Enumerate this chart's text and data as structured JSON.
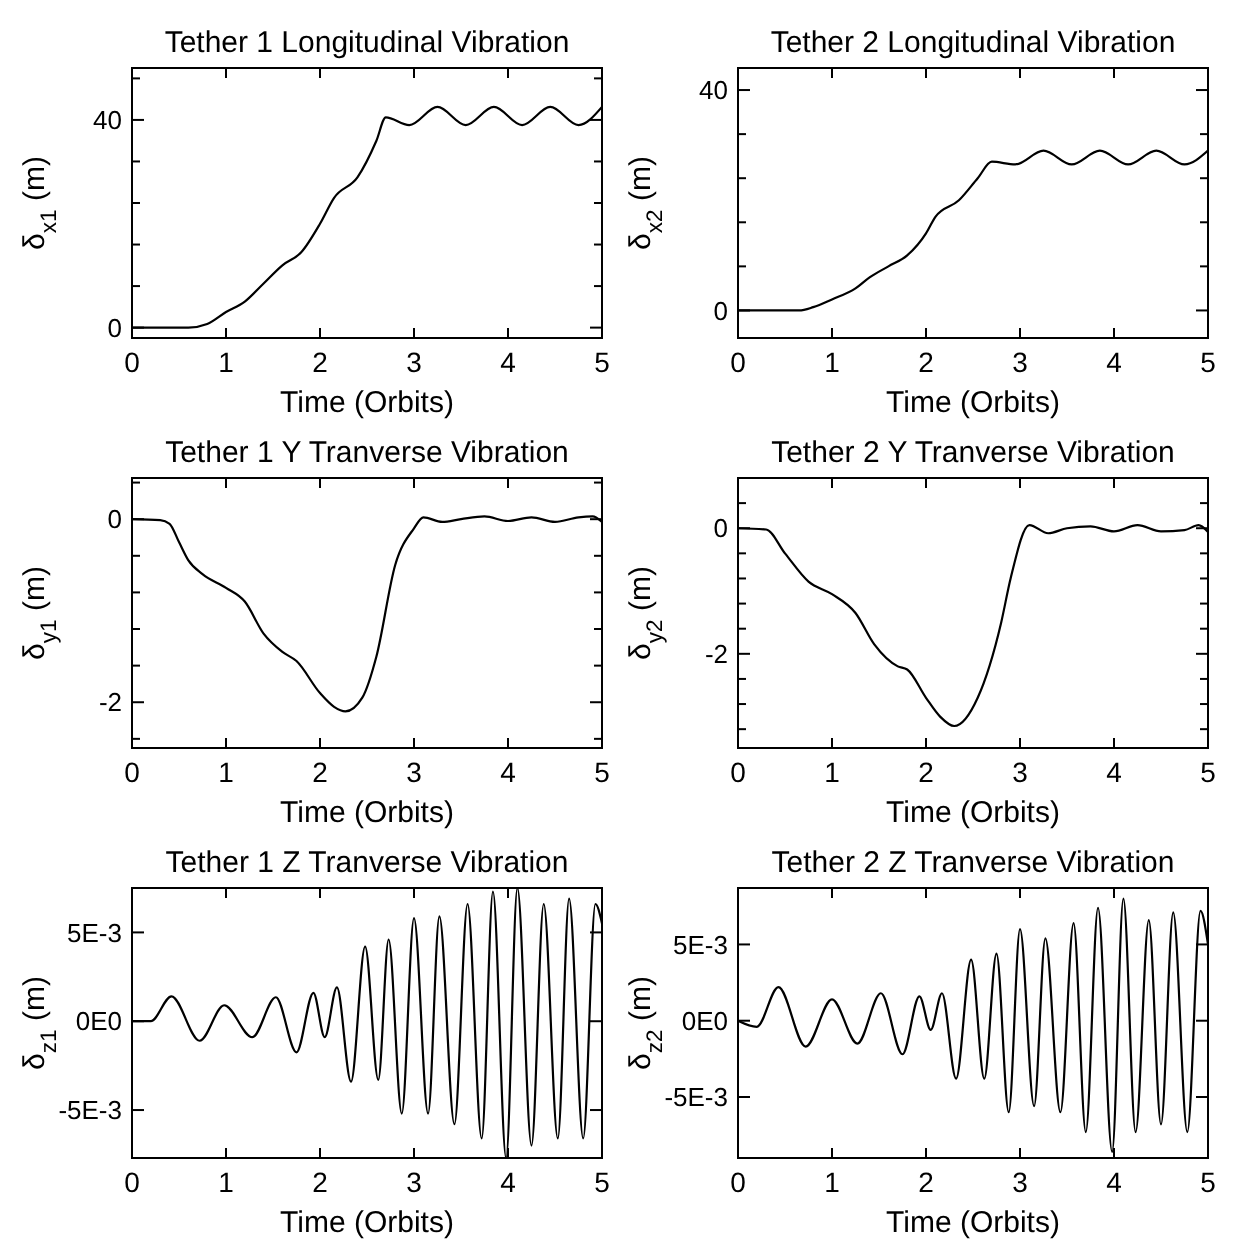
{
  "chart_data": [
    {
      "type": "line",
      "title": "Tether 1 Longitudinal Vibration",
      "xlabel": "Time (Orbits)",
      "ylabel": "δ$_{x1}$ (m)",
      "xlim": [
        0,
        5
      ],
      "xticks": [
        0,
        1,
        2,
        3,
        4,
        5
      ],
      "ylim": [
        -2,
        50
      ],
      "yticks": [
        0,
        {
          "value": 8,
          "label": null
        },
        {
          "value": 16,
          "label": null
        },
        {
          "value": 24,
          "label": null
        },
        {
          "value": 32,
          "label": null
        },
        40,
        {
          "value": 48,
          "label": null
        }
      ],
      "grid": false,
      "series": [
        {
          "color": "#000000",
          "x": [
            0,
            0.6,
            0.8,
            1.0,
            1.2,
            1.4,
            1.6,
            1.8,
            2.0,
            2.15,
            2.4,
            2.6,
            2.7,
            2.95,
            3.25,
            3.55,
            3.85,
            4.15,
            4.45,
            4.75,
            5.0
          ],
          "values": [
            0,
            0,
            0.7,
            3,
            5,
            8.5,
            12,
            14.5,
            20,
            25,
            29,
            36,
            40.5,
            39,
            42.5,
            39,
            42.5,
            39,
            42.5,
            39,
            42.5
          ]
        }
      ]
    },
    {
      "type": "line",
      "title": "Tether 2 Longitudinal Vibration",
      "xlabel": "Time (Orbits)",
      "ylabel": "δ$_{x2}$ (m)",
      "xlim": [
        0,
        5
      ],
      "xticks": [
        0,
        1,
        2,
        3,
        4,
        5
      ],
      "ylim": [
        -5,
        44
      ],
      "yticks": [
        0,
        {
          "value": 8,
          "label": null
        },
        {
          "value": 16,
          "label": null
        },
        {
          "value": 24,
          "label": null
        },
        {
          "value": 32,
          "label": null
        },
        40
      ],
      "grid": false,
      "series": [
        {
          "color": "#000000",
          "x": [
            0,
            0.65,
            0.8,
            1.0,
            1.25,
            1.4,
            1.6,
            1.8,
            2.0,
            2.1,
            2.35,
            2.55,
            2.7,
            2.95,
            3.25,
            3.55,
            3.85,
            4.15,
            4.45,
            4.75,
            5.0
          ],
          "values": [
            0,
            0,
            0.6,
            2,
            4,
            6,
            8,
            10,
            14,
            17,
            20,
            24,
            27,
            26.5,
            29,
            26.5,
            29,
            26.5,
            29,
            26.5,
            29
          ]
        }
      ]
    },
    {
      "type": "line",
      "title": "Tether 1 Y Tranverse Vibration",
      "xlabel": "Time (Orbits)",
      "ylabel": "δ$_{y1}$ (m)",
      "xlim": [
        0,
        5
      ],
      "xticks": [
        0,
        1,
        2,
        3,
        4,
        5
      ],
      "ylim": [
        -2.5,
        0.45
      ],
      "yticks": [
        {
          "value": -2.4,
          "label": null
        },
        -2,
        {
          "value": -1.6,
          "label": null
        },
        {
          "value": -1.2,
          "label": null
        },
        {
          "value": -0.8,
          "label": null
        },
        {
          "value": -0.4,
          "label": null
        },
        0,
        {
          "value": 0.4,
          "label": null
        }
      ],
      "grid": false,
      "series": [
        {
          "color": "#000000",
          "x": [
            0,
            0.3,
            0.4,
            0.5,
            0.6,
            0.75,
            1.0,
            1.2,
            1.4,
            1.6,
            1.75,
            2.0,
            2.15,
            2.27,
            2.45,
            2.6,
            2.8,
            3.0,
            3.1,
            3.3,
            3.5,
            3.75,
            4.0,
            4.25,
            4.5,
            4.75,
            4.9,
            5.0
          ],
          "values": [
            0,
            -0.01,
            -0.05,
            -0.25,
            -0.45,
            -0.6,
            -0.75,
            -0.9,
            -1.25,
            -1.45,
            -1.55,
            -1.9,
            -2.05,
            -2.1,
            -1.95,
            -1.5,
            -0.5,
            -0.1,
            0.02,
            -0.03,
            0,
            0.03,
            -0.02,
            0.02,
            -0.03,
            0.02,
            0.03,
            -0.03
          ]
        }
      ]
    },
    {
      "type": "line",
      "title": "Tether 2 Y Tranverse Vibration",
      "xlabel": "Time (Orbits)",
      "ylabel": "δ$_{y2}$ (m)",
      "xlim": [
        0,
        5
      ],
      "xticks": [
        0,
        1,
        2,
        3,
        4,
        5
      ],
      "ylim": [
        -3.5,
        0.8
      ],
      "yticks": [
        {
          "value": -3.2,
          "label": null
        },
        {
          "value": -2.8,
          "label": null
        },
        {
          "value": -2.4,
          "label": null
        },
        -2,
        {
          "value": -1.6,
          "label": null
        },
        {
          "value": -1.2,
          "label": null
        },
        {
          "value": -0.8,
          "label": null
        },
        {
          "value": -0.4,
          "label": null
        },
        0,
        {
          "value": 0.4,
          "label": null
        }
      ],
      "grid": false,
      "series": [
        {
          "color": "#000000",
          "x": [
            0,
            0.3,
            0.5,
            0.75,
            1.0,
            1.25,
            1.45,
            1.7,
            1.8,
            2.0,
            2.15,
            2.3,
            2.55,
            2.8,
            2.9,
            3.1,
            3.3,
            3.5,
            3.75,
            4.0,
            4.25,
            4.5,
            4.75,
            4.9,
            5.0
          ],
          "values": [
            0,
            -0.02,
            -0.4,
            -0.85,
            -1.05,
            -1.35,
            -1.85,
            -2.2,
            -2.25,
            -2.7,
            -3.0,
            -3.15,
            -2.7,
            -1.5,
            -0.8,
            0.05,
            -0.08,
            0,
            0.03,
            -0.05,
            0.05,
            -0.05,
            -0.03,
            0.05,
            -0.06
          ]
        }
      ]
    },
    {
      "type": "line",
      "title": "Tether 1 Z Tranverse Vibration",
      "xlabel": "Time (Orbits)",
      "ylabel": "δ$_{z1}$ (m)",
      "xlim": [
        0,
        5
      ],
      "xticks": [
        0,
        1,
        2,
        3,
        4,
        5
      ],
      "ylim": [
        -0.0077,
        0.0075
      ],
      "yticks": [
        {
          "value": -0.005,
          "label": "-5E-3"
        },
        {
          "value": 0,
          "label": "0E0"
        },
        {
          "value": 0.005,
          "label": "5E-3"
        }
      ],
      "grid": false,
      "series": [
        {
          "color": "#000000",
          "x": [
            0,
            0.2,
            0.42,
            0.72,
            0.98,
            1.28,
            1.53,
            1.75,
            1.93,
            2.05,
            2.18,
            2.33,
            2.48,
            2.62,
            2.73,
            2.87,
            3.0,
            3.15,
            3.27,
            3.43,
            3.57,
            3.72,
            3.84,
            3.98,
            4.1,
            4.25,
            4.38,
            4.53,
            4.65,
            4.8,
            4.93,
            5.0
          ],
          "values": [
            0,
            0,
            0.0014,
            -0.0011,
            0.0009,
            -0.0009,
            0.00135,
            -0.00175,
            0.0016,
            -0.0009,
            0.0019,
            -0.0034,
            0.0042,
            -0.0033,
            0.0046,
            -0.0052,
            0.0058,
            -0.0052,
            0.0059,
            -0.0058,
            0.0066,
            -0.0066,
            0.0073,
            -0.0077,
            0.0075,
            -0.007,
            0.0066,
            -0.0066,
            0.0069,
            -0.0066,
            0.0066,
            0.0055
          ]
        }
      ]
    },
    {
      "type": "line",
      "title": "Tether 2 Z Tranverse Vibration",
      "xlabel": "Time (Orbits)",
      "ylabel": "δ$_{z2}$ (m)",
      "xlim": [
        0,
        5
      ],
      "xticks": [
        0,
        1,
        2,
        3,
        4,
        5
      ],
      "ylim": [
        -0.009,
        0.0087
      ],
      "yticks": [
        {
          "value": -0.005,
          "label": "-5E-3"
        },
        {
          "value": 0,
          "label": "0E0"
        },
        {
          "value": 0.005,
          "label": "5E-3"
        }
      ],
      "grid": false,
      "series": [
        {
          "color": "#000000",
          "x": [
            0,
            0.2,
            0.43,
            0.72,
            1.0,
            1.27,
            1.52,
            1.75,
            1.93,
            2.05,
            2.17,
            2.32,
            2.48,
            2.62,
            2.75,
            2.88,
            3.0,
            3.15,
            3.27,
            3.43,
            3.57,
            3.7,
            3.83,
            3.98,
            4.1,
            4.23,
            4.37,
            4.5,
            4.63,
            4.78,
            4.92,
            5.0
          ],
          "values": [
            0,
            -0.0004,
            0.0022,
            -0.0017,
            0.0014,
            -0.0015,
            0.0018,
            -0.0022,
            0.0016,
            -0.0006,
            0.0018,
            -0.0038,
            0.004,
            -0.0038,
            0.0044,
            -0.006,
            0.006,
            -0.0056,
            0.0054,
            -0.006,
            0.0064,
            -0.0073,
            0.0074,
            -0.0086,
            0.008,
            -0.0073,
            0.0066,
            -0.0068,
            0.0071,
            -0.0073,
            0.0072,
            0.005
          ]
        }
      ]
    }
  ]
}
